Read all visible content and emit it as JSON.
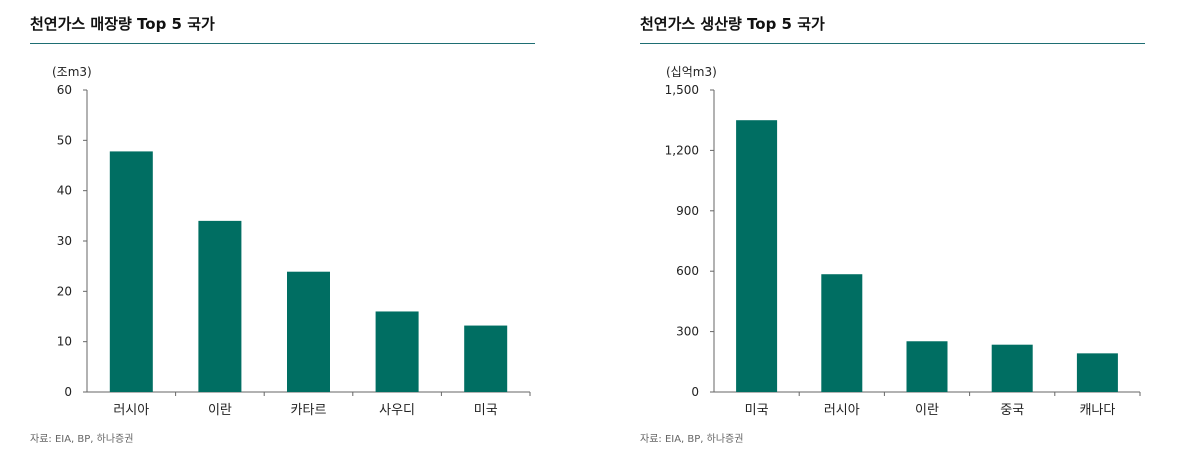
{
  "colors": {
    "bar": "#006e62",
    "axis": "#666666",
    "title_rule": "#1e6e73"
  },
  "chart_data": [
    {
      "type": "bar",
      "title": "천연가스 매장량 Top 5 국가",
      "unit": "(조m3)",
      "categories": [
        "러시아",
        "이란",
        "카타르",
        "사우디",
        "미국"
      ],
      "values": [
        47.8,
        34.0,
        23.9,
        16.0,
        13.2
      ],
      "ylim": [
        0,
        60
      ],
      "yticks": [
        0,
        10,
        20,
        30,
        40,
        50,
        60
      ],
      "ytick_labels": [
        "0",
        "10",
        "20",
        "30",
        "40",
        "50",
        "60"
      ],
      "grid": false,
      "source": "자료: EIA, BP, 하나증권"
    },
    {
      "type": "bar",
      "title": "천연가스 생산량 Top 5 국가",
      "unit": "(십억m3)",
      "categories": [
        "미국",
        "러시아",
        "이란",
        "중국",
        "캐나다"
      ],
      "values": [
        1350,
        585,
        252,
        235,
        192
      ],
      "ylim": [
        0,
        1500
      ],
      "yticks": [
        0,
        300,
        600,
        900,
        1200,
        1500
      ],
      "ytick_labels": [
        "0",
        "300",
        "600",
        "900",
        "1,200",
        "1,500"
      ],
      "grid": false,
      "source": "자료: EIA, BP, 하나증권"
    }
  ]
}
